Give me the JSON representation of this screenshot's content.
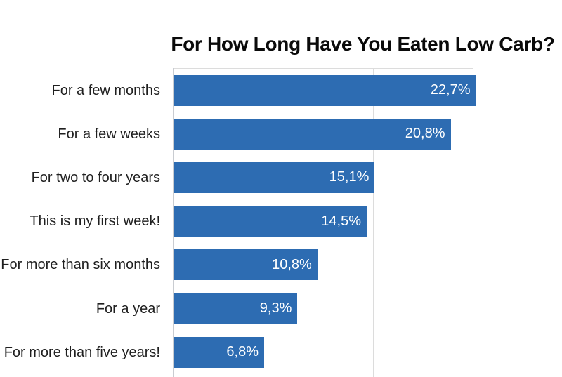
{
  "title": "For How Long Have You Eaten Low Carb?",
  "colors": {
    "bar": "#2D6CB2",
    "gridline": "#DCDCDC",
    "axis_line": "#C9CCD1",
    "title_text": "#0A0A0A",
    "category_text": "#1F1F1F",
    "value_text": "#FFFFFF",
    "background": "#FFFFFF"
  },
  "chart_data": {
    "type": "bar",
    "orientation": "horizontal",
    "title": "For How Long Have You Eaten Low Carb?",
    "categories": [
      "For a few months",
      "For a few weeks",
      "For two to four years",
      "This is my first week!",
      "For more than six months",
      "For a year",
      "For more than five years!"
    ],
    "values": [
      22.7,
      20.8,
      15.1,
      14.5,
      10.8,
      9.3,
      6.8
    ],
    "value_labels": [
      "22,7%",
      "20,8%",
      "15,1%",
      "14,5%",
      "10,8%",
      "9,3%",
      "6,8%"
    ],
    "xlabel": "",
    "ylabel": "",
    "xlim": [
      0,
      30
    ],
    "gridline_percents": [
      7.5,
      15,
      22.5
    ],
    "grid": true,
    "legend": false,
    "value_label_position": "inside-end",
    "note": "bottom value axis cropped out of frame"
  }
}
